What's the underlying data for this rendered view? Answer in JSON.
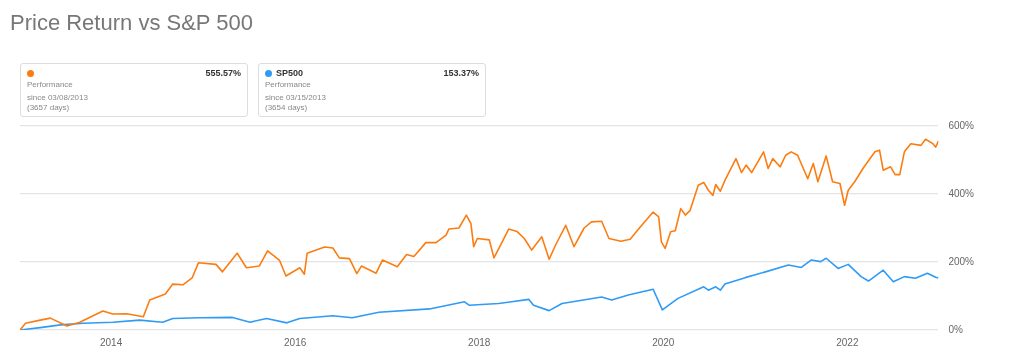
{
  "chart_data": {
    "type": "line",
    "title": "Price Return vs S&P 500",
    "annotations": [
      "555.57%",
      "Performance",
      "since 03/08/2013",
      "(3657 days)",
      "153.37%",
      "Performance",
      "since 03/15/2013",
      "(3654 days)"
    ],
    "legend": "top left",
    "grid": "y",
    "marker": "none",
    "line_style": "solid",
    "xlim": [
      2013.01,
      2022.99
    ],
    "xticks": [
      2014,
      2016,
      2018,
      2020,
      2022
    ],
    "ylim": [
      0,
      600
    ],
    "yticks": [
      {
        "value": 0,
        "label": "0%"
      },
      {
        "value": 200,
        "label": "200%"
      },
      {
        "value": 400,
        "label": "400%"
      },
      {
        "value": 600,
        "label": "600%"
      }
    ],
    "series": [
      {
        "color": "#fb7d12",
        "x": [
          2013.01,
          2013.07,
          2013.23,
          2013.34,
          2013.52,
          2013.66,
          2013.91,
          2014.02,
          2014.17,
          2014.35,
          2014.42,
          2014.59,
          2014.67,
          2014.78,
          2014.88,
          2014.95,
          2015.14,
          2015.21,
          2015.37,
          2015.47,
          2015.61,
          2015.7,
          2015.83,
          2015.9,
          2016.05,
          2016.1,
          2016.13,
          2016.32,
          2016.41,
          2016.48,
          2016.59,
          2016.67,
          2016.72,
          2016.88,
          2016.95,
          2017.11,
          2017.21,
          2017.29,
          2017.42,
          2017.53,
          2017.64,
          2017.67,
          2017.78,
          2017.86,
          2017.91,
          2017.94,
          2017.98,
          2018.11,
          2018.16,
          2018.25,
          2018.32,
          2018.41,
          2018.49,
          2018.57,
          2018.68,
          2018.76,
          2018.83,
          2018.94,
          2019.03,
          2019.14,
          2019.22,
          2019.33,
          2019.41,
          2019.54,
          2019.64,
          2019.75,
          2019.89,
          2019.95,
          2019.98,
          2020.02,
          2020.08,
          2020.13,
          2020.19,
          2020.24,
          2020.29,
          2020.38,
          2020.44,
          2020.49,
          2020.54,
          2020.57,
          2020.62,
          2020.67,
          2020.79,
          2020.85,
          2020.9,
          2020.96,
          2021.09,
          2021.14,
          2021.19,
          2021.27,
          2021.33,
          2021.39,
          2021.46,
          2021.57,
          2021.63,
          2021.68,
          2021.77,
          2021.84,
          2021.92,
          2021.97,
          2022.01,
          2022.08,
          2022.17,
          2022.3,
          2022.35,
          2022.39,
          2022.47,
          2022.52,
          2022.57,
          2022.62,
          2022.69,
          2022.8,
          2022.85,
          2022.93,
          2022.96,
          2022.99
        ],
        "values": [
          0,
          20,
          29,
          35,
          12,
          23,
          56,
          47,
          48,
          39,
          88,
          106,
          135,
          133,
          153,
          198,
          193,
          171,
          226,
          183,
          188,
          233,
          205,
          159,
          183,
          164,
          226,
          244,
          241,
          212,
          210,
          166,
          188,
          167,
          206,
          186,
          222,
          216,
          257,
          257,
          279,
          297,
          300,
          338,
          313,
          245,
          269,
          265,
          212,
          259,
          297,
          290,
          269,
          235,
          274,
          208,
          250,
          308,
          245,
          300,
          318,
          320,
          269,
          261,
          267,
          303,
          347,
          333,
          259,
          240,
          289,
          292,
          357,
          338,
          351,
          426,
          434,
          411,
          396,
          428,
          408,
          440,
          504,
          463,
          485,
          463,
          524,
          475,
          504,
          480,
          514,
          524,
          514,
          445,
          490,
          436,
          512,
          436,
          431,
          367,
          411,
          436,
          475,
          524,
          529,
          470,
          480,
          457,
          457,
          524,
          548,
          543,
          561,
          548,
          538,
          556
        ]
      },
      {
        "name": "SP500",
        "color": "#2f9bf5",
        "x": [
          2013.01,
          2013.23,
          2013.45,
          2013.7,
          2014.02,
          2014.31,
          2014.56,
          2014.67,
          2014.96,
          2015.32,
          2015.51,
          2015.69,
          2015.91,
          2016.05,
          2016.41,
          2016.62,
          2016.91,
          2017.46,
          2017.84,
          2017.89,
          2018.21,
          2018.54,
          2018.59,
          2018.76,
          2018.9,
          2019.33,
          2019.44,
          2019.62,
          2019.89,
          2019.99,
          2020.16,
          2020.44,
          2020.49,
          2020.57,
          2020.62,
          2020.67,
          2020.89,
          2021.11,
          2021.36,
          2021.5,
          2021.61,
          2021.71,
          2021.77,
          2021.9,
          2022.01,
          2022.15,
          2022.23,
          2022.39,
          2022.5,
          2022.62,
          2022.74,
          2022.87,
          2022.96,
          2022.99
        ],
        "values": [
          0,
          7,
          15,
          20,
          23,
          29,
          23,
          34,
          36,
          37,
          23,
          34,
          21,
          34,
          42,
          36,
          52,
          62,
          83,
          73,
          78,
          90,
          73,
          57,
          78,
          97,
          88,
          103,
          120,
          59,
          93,
          127,
          117,
          127,
          117,
          135,
          154,
          171,
          191,
          184,
          206,
          201,
          211,
          181,
          193,
          157,
          144,
          176,
          142,
          157,
          152,
          167,
          155,
          153
        ]
      }
    ]
  }
}
